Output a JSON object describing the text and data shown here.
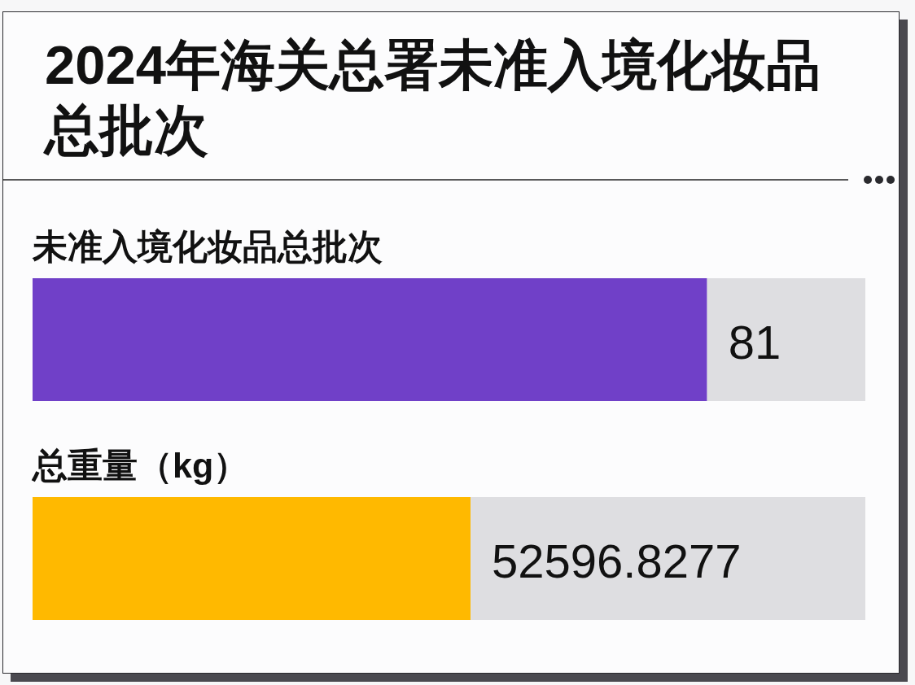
{
  "chart_data": [
    {
      "type": "bar",
      "orientation": "horizontal",
      "stacked": true,
      "tick_labels": "y",
      "title": "2024年海关总署未准入境化妆品总批次",
      "categories": [
        "未准入境化妆品总批次"
      ],
      "series": [
        {
          "color": "#7040c8",
          "values": [
            81
          ],
          "value_labels": [
            "81"
          ]
        },
        {
          "color": "#dedee1",
          "values": [
            19
          ]
        }
      ]
    },
    {
      "type": "bar",
      "orientation": "horizontal",
      "stacked": true,
      "tick_labels": "y",
      "categories": [
        "总重量（kg）"
      ],
      "series": [
        {
          "color": "#ffb900",
          "values": [
            52596.8277
          ],
          "value_labels": [
            "52596.8277"
          ]
        },
        {
          "color": "#dedee1",
          "values": [
            47400
          ]
        }
      ]
    }
  ]
}
